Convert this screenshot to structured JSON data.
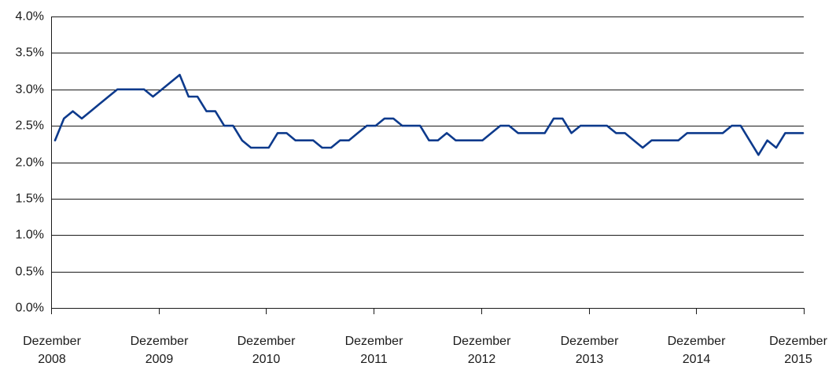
{
  "chart_data": {
    "type": "line",
    "title": "",
    "xlabel": "",
    "ylabel": "",
    "ylim": [
      0,
      0.04
    ],
    "y_ticks": [
      {
        "value": 0.0,
        "label": "0.0%"
      },
      {
        "value": 0.005,
        "label": "0.5%"
      },
      {
        "value": 0.01,
        "label": "1.0%"
      },
      {
        "value": 0.015,
        "label": "1.5%"
      },
      {
        "value": 0.02,
        "label": "2.0%"
      },
      {
        "value": 0.025,
        "label": "2.5%"
      },
      {
        "value": 0.03,
        "label": "3.0%"
      },
      {
        "value": 0.035,
        "label": "3.5%"
      },
      {
        "value": 0.04,
        "label": "4.0%"
      }
    ],
    "x_ticks": [
      {
        "value": 0,
        "line1": "Dezember",
        "line2": "2008"
      },
      {
        "value": 12,
        "line1": "Dezember",
        "line2": "2009"
      },
      {
        "value": 24,
        "line1": "Dezember",
        "line2": "2010"
      },
      {
        "value": 36,
        "line1": "Dezember",
        "line2": "2011"
      },
      {
        "value": 48,
        "line1": "Dezember",
        "line2": "2012"
      },
      {
        "value": 60,
        "line1": "Dezember",
        "line2": "2013"
      },
      {
        "value": 72,
        "line1": "Dezember",
        "line2": "2014"
      },
      {
        "value": 84,
        "line1": "Dezember",
        "line2": "2015"
      }
    ],
    "grid": true,
    "legend": "none",
    "series": [
      {
        "color": "#0d3a8c",
        "values": [
          0.023,
          0.026,
          0.027,
          0.026,
          0.027,
          0.028,
          0.029,
          0.03,
          0.03,
          0.03,
          0.03,
          0.029,
          0.03,
          0.031,
          0.032,
          0.029,
          0.029,
          0.027,
          0.027,
          0.025,
          0.025,
          0.023,
          0.022,
          0.022,
          0.022,
          0.024,
          0.024,
          0.023,
          0.023,
          0.023,
          0.022,
          0.022,
          0.023,
          0.023,
          0.024,
          0.025,
          0.025,
          0.026,
          0.026,
          0.025,
          0.025,
          0.025,
          0.023,
          0.023,
          0.024,
          0.023,
          0.023,
          0.023,
          0.023,
          0.024,
          0.025,
          0.025,
          0.024,
          0.024,
          0.024,
          0.024,
          0.026,
          0.026,
          0.024,
          0.025,
          0.025,
          0.025,
          0.025,
          0.024,
          0.024,
          0.023,
          0.022,
          0.023,
          0.023,
          0.023,
          0.023,
          0.024,
          0.024,
          0.024,
          0.024,
          0.024,
          0.025,
          0.025,
          0.023,
          0.021,
          0.023,
          0.022,
          0.024,
          0.024,
          0.024
        ]
      }
    ]
  }
}
